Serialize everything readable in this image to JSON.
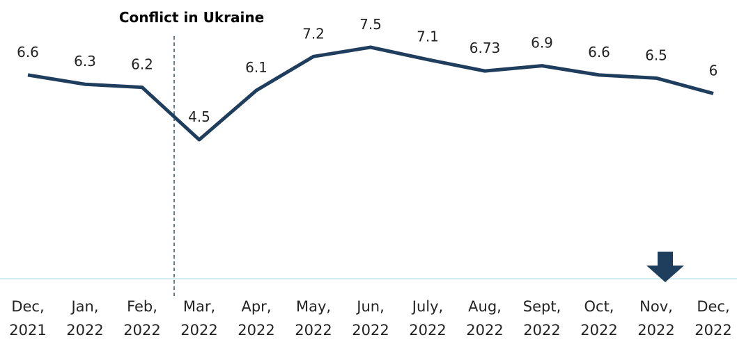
{
  "chart_data": {
    "type": "line",
    "annotation": "Conflict in Ukraine",
    "categories": [
      "Dec, 2021",
      "Jan, 2022",
      "Feb, 2022",
      "Mar, 2022",
      "Apr, 2022",
      "May, 2022",
      "Jun, 2022",
      "July, 2022",
      "Aug, 2022",
      "Sept, 2022",
      "Oct, 2022",
      "Nov, 2022",
      "Dec, 2022"
    ],
    "values": [
      6.6,
      6.3,
      6.2,
      4.5,
      6.1,
      7.2,
      7.5,
      7.1,
      6.73,
      6.9,
      6.6,
      6.5,
      6
    ],
    "color": "#1f3e5e"
  }
}
